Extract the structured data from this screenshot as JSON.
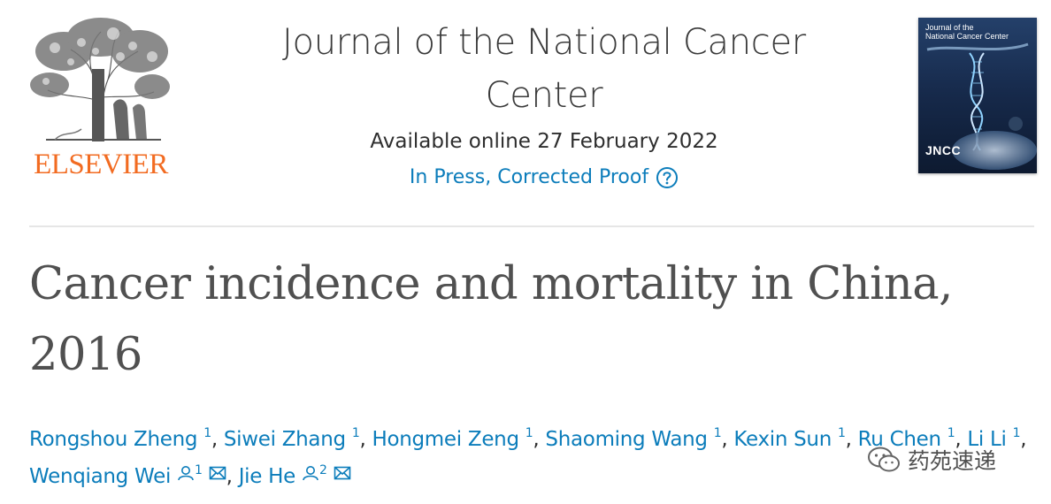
{
  "publisher": {
    "name": "ELSEVIER",
    "logo_icon": "elsevier-tree-logo",
    "brand_color": "#f26b21"
  },
  "journal": {
    "title": "Journal of the National Cancer Center",
    "available_online": "Available online 27 February 2022",
    "status": "In Press, Corrected Proof",
    "status_help_icon": "question-circle-icon",
    "link_color": "#0c7dbb"
  },
  "cover": {
    "title_line1": "Journal of the",
    "title_line2": "National Cancer Center",
    "abbr": "JNCC"
  },
  "article": {
    "title": "Cancer incidence and mortality in China, 2016"
  },
  "authors": [
    {
      "name": "Rongshou Zheng",
      "sup": "1"
    },
    {
      "name": "Siwei Zhang",
      "sup": "1"
    },
    {
      "name": "Hongmei Zeng",
      "sup": "1"
    },
    {
      "name": "Shaoming Wang",
      "sup": "1"
    },
    {
      "name": "Kexin Sun",
      "sup": "1"
    },
    {
      "name": "Ru Chen",
      "sup": "1"
    },
    {
      "name": "Li Li",
      "sup": "1"
    },
    {
      "name": "Wenqiang Wei",
      "sup": "1",
      "person_icon": "person-icon",
      "mail_icon": "mail-icon"
    },
    {
      "name": "Jie He",
      "sup": "2",
      "person_icon": "person-icon",
      "mail_icon": "mail-icon"
    }
  ],
  "watermark": {
    "text": "药苑速递",
    "icon": "wechat-icon"
  }
}
